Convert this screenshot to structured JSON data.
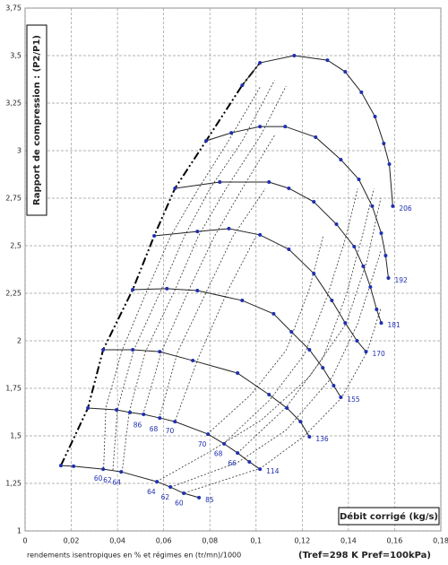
{
  "chart_data": {
    "type": "line",
    "y_label": "Rapport de compression : (P2/P1)",
    "x_label": "Débit corrigé (kg/s)",
    "footnote": "rendements isentropiques en % et régimes en (tr/mn)/1000",
    "reference": "(Tref=298 K   Pref=100kPa)",
    "xlim": [
      0,
      0.18
    ],
    "xticks": [
      0,
      {
        "value": 0.02,
        "label": "0,02"
      },
      {
        "value": 0.04,
        "label": "0,04"
      },
      {
        "value": 0.06,
        "label": "0,06"
      },
      {
        "value": 0.08,
        "label": "0,08"
      },
      {
        "value": 0.1,
        "label": "0,1"
      },
      {
        "value": 0.12,
        "label": "0,12"
      },
      {
        "value": 0.14,
        "label": "0,14"
      },
      {
        "value": 0.16,
        "label": "0,16"
      },
      {
        "value": 0.18,
        "label": "0,18"
      }
    ],
    "ylim": [
      1,
      3.75
    ],
    "yticks": [
      1,
      {
        "value": 1.25,
        "label": "1,25"
      },
      {
        "value": 1.5,
        "label": "1,5"
      },
      {
        "value": 1.75,
        "label": "1,75"
      },
      2,
      {
        "value": 2.25,
        "label": "2,25"
      },
      {
        "value": 2.5,
        "label": "2,5"
      },
      {
        "value": 2.75,
        "label": "2,75"
      },
      3,
      {
        "value": 3.25,
        "label": "3,25"
      },
      {
        "value": 3.5,
        "label": "3,5"
      },
      {
        "value": 3.75,
        "label": "3,75"
      }
    ],
    "grid": true,
    "line_color": "#222222",
    "marker_color": "#1f2fb0",
    "series": [
      {
        "name": "85",
        "x": [
          0.0155,
          0.021,
          0.0338,
          0.0416,
          0.0571,
          0.0629,
          0.0687,
          0.0753
        ],
        "values": [
          1.344,
          1.34,
          1.325,
          1.311,
          1.259,
          1.231,
          1.198,
          1.175
        ]
      },
      {
        "name": "114",
        "x": [
          0.0272,
          0.0396,
          0.0454,
          0.0513,
          0.0583,
          0.0649,
          0.0792,
          0.0862,
          0.092,
          0.0971,
          0.1017
        ],
        "values": [
          1.646,
          1.637,
          1.623,
          1.613,
          1.594,
          1.575,
          1.509,
          1.458,
          1.41,
          1.363,
          1.325
        ]
      },
      {
        "name": "136",
        "x": [
          0.0338,
          0.0466,
          0.0583,
          0.0726,
          0.092,
          0.1056,
          0.1134,
          0.1192,
          0.1231
        ],
        "values": [
          1.953,
          1.953,
          1.943,
          1.896,
          1.83,
          1.717,
          1.646,
          1.575,
          1.495
        ]
      },
      {
        "name": "155",
        "x": [
          0.0466,
          0.0614,
          0.0746,
          0.094,
          0.1076,
          0.1153,
          0.1231,
          0.1289,
          0.1336,
          0.1367
        ],
        "values": [
          2.269,
          2.274,
          2.264,
          2.212,
          2.142,
          2.047,
          1.953,
          1.858,
          1.764,
          1.703
        ]
      },
      {
        "name": "170",
        "x": [
          0.0559,
          0.0746,
          0.0882,
          0.1017,
          0.1142,
          0.125,
          0.1328,
          0.1386,
          0.1437,
          0.1476
        ],
        "values": [
          2.552,
          2.575,
          2.59,
          2.557,
          2.481,
          2.354,
          2.212,
          2.094,
          2.0,
          1.943
        ]
      },
      {
        "name": "181",
        "x": [
          0.0649,
          0.0843,
          0.1056,
          0.1142,
          0.125,
          0.1348,
          0.1425,
          0.1464,
          0.1495,
          0.1522,
          0.1542
        ],
        "values": [
          2.802,
          2.835,
          2.835,
          2.802,
          2.731,
          2.613,
          2.495,
          2.392,
          2.283,
          2.165,
          2.094
        ]
      },
      {
        "name": "192",
        "x": [
          0.0784,
          0.0893,
          0.1017,
          0.1126,
          0.1258,
          0.1367,
          0.1445,
          0.1503,
          0.1542,
          0.1561,
          0.1573
        ],
        "values": [
          3.052,
          3.094,
          3.127,
          3.127,
          3.071,
          2.953,
          2.849,
          2.708,
          2.566,
          2.448,
          2.33
        ]
      },
      {
        "name": "206",
        "x": [
          0.094,
          0.1017,
          0.1165,
          0.1309,
          0.1386,
          0.1456,
          0.1515,
          0.1553,
          0.1577,
          0.1592
        ],
        "values": [
          3.344,
          3.462,
          3.5,
          3.476,
          3.415,
          3.307,
          3.179,
          3.038,
          2.929,
          2.708
        ]
      }
    ],
    "surge_line": {
      "x": [
        0.0155,
        0.0272,
        0.0338,
        0.0466,
        0.0559,
        0.0649,
        0.0784,
        0.094,
        0.1017
      ],
      "y": [
        1.344,
        1.646,
        1.953,
        2.269,
        2.552,
        2.802,
        3.052,
        3.344,
        3.462
      ]
    },
    "efficiency": [
      {
        "label": "60",
        "x": [
          0.034,
          0.035,
          0.042,
          0.053,
          0.063,
          0.075,
          0.088,
          0.102
        ],
        "y": [
          1.33,
          1.65,
          1.95,
          2.27,
          2.55,
          2.8,
          3.05,
          3.34
        ]
      },
      {
        "label": "62",
        "x": [
          0.038,
          0.04,
          0.047,
          0.059,
          0.069,
          0.08,
          0.094,
          0.108
        ],
        "y": [
          1.32,
          1.64,
          1.95,
          2.27,
          2.55,
          2.8,
          3.05,
          3.37
        ]
      },
      {
        "label": "64",
        "x": [
          0.042,
          0.045,
          0.052,
          0.065,
          0.075,
          0.087,
          0.102,
          0.113
        ],
        "y": [
          1.31,
          1.62,
          1.94,
          2.27,
          2.55,
          2.8,
          3.08,
          3.34
        ]
      },
      {
        "label": "86",
        "x": [
          0.051,
          0.059,
          0.071,
          0.082,
          0.094,
          0.108
        ],
        "y": [
          1.61,
          1.94,
          2.27,
          2.55,
          2.8,
          3.08
        ]
      },
      {
        "label": "68",
        "x": [
          0.058,
          0.066,
          0.079,
          0.09,
          0.104
        ],
        "y": [
          1.59,
          1.94,
          2.27,
          2.55,
          2.8
        ]
      },
      {
        "label": "70",
        "x": [
          0.065,
          0.075,
          0.088,
          0.1
        ],
        "y": [
          1.58,
          1.91,
          2.27,
          2.55
        ]
      },
      {
        "label": "70",
        "x": [
          0.079,
          0.098,
          0.113,
          0.123,
          0.129
        ],
        "y": [
          1.51,
          1.72,
          1.95,
          2.27,
          2.55
        ]
      },
      {
        "label": "68",
        "x": [
          0.086,
          0.106,
          0.121,
          0.131,
          0.139,
          0.144
        ],
        "y": [
          1.46,
          1.69,
          1.93,
          2.24,
          2.55,
          2.8
        ]
      },
      {
        "label": "66",
        "x": [
          0.092,
          0.113,
          0.129,
          0.139,
          0.146,
          0.151
        ],
        "y": [
          1.41,
          1.65,
          1.91,
          2.24,
          2.55,
          2.8
        ]
      },
      {
        "label": "64",
        "x": [
          0.057,
          0.079,
          0.102,
          0.123,
          0.139,
          0.148,
          0.154
        ],
        "y": [
          1.26,
          1.41,
          1.58,
          1.81,
          2.09,
          2.42,
          2.75
        ]
      },
      {
        "label": "62",
        "x": [
          0.063,
          0.092,
          0.113,
          0.133,
          0.144,
          0.154
        ],
        "y": [
          1.23,
          1.36,
          1.53,
          1.81,
          2.09,
          2.47
        ]
      },
      {
        "label": "60",
        "x": [
          0.069,
          0.102,
          0.121,
          0.137,
          0.148,
          0.154
        ],
        "y": [
          1.2,
          1.33,
          1.5,
          1.7,
          1.94,
          2.17
        ]
      }
    ]
  }
}
